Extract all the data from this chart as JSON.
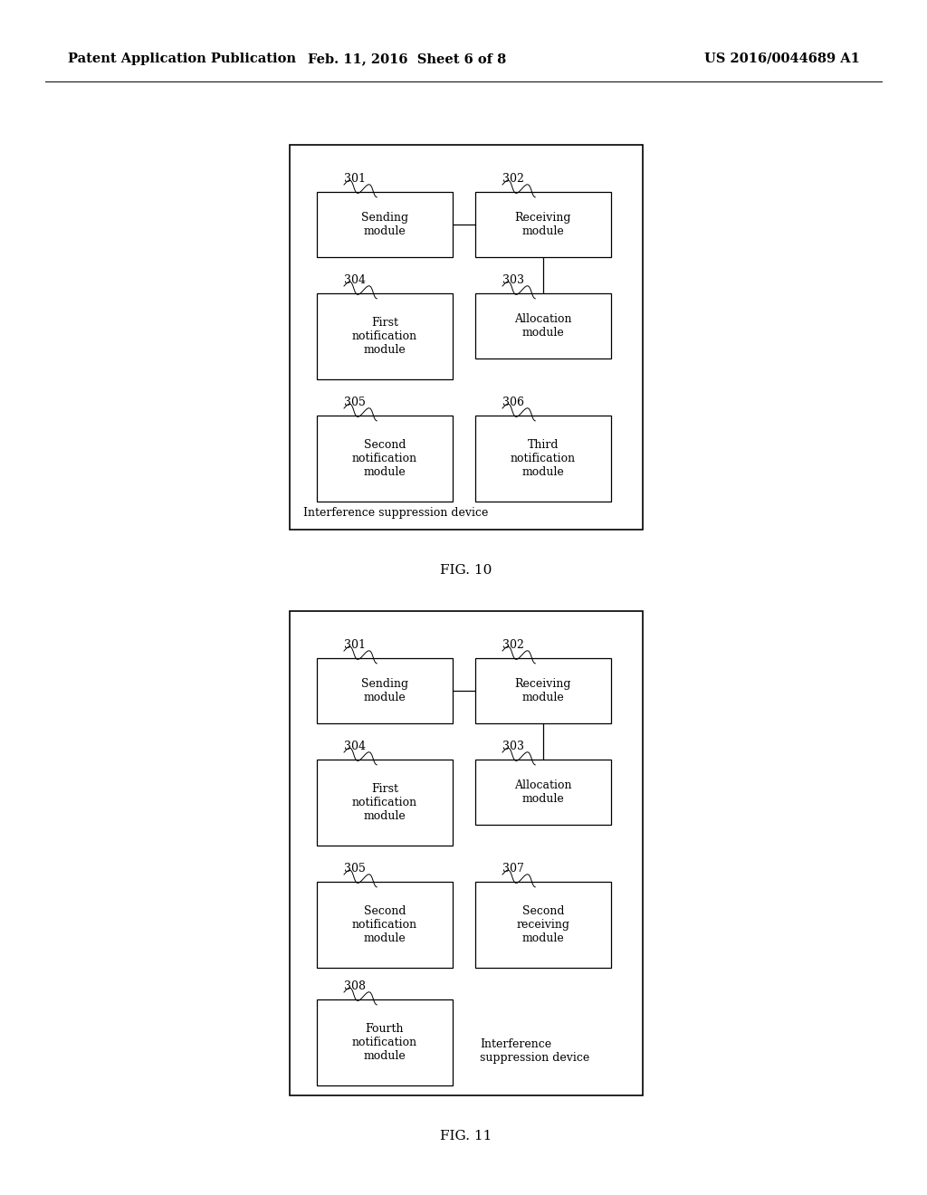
{
  "bg_color": "#ffffff",
  "header_left": "Patent Application Publication",
  "header_center": "Feb. 11, 2016  Sheet 6 of 8",
  "header_right": "US 2016/0044689 A1",
  "fig10_title": "FIG. 10",
  "fig11_title": "FIG. 11",
  "font_size_header": 10.5,
  "font_size_label": 9.0,
  "font_size_box": 9.0,
  "font_size_id": 9.0,
  "font_size_fig": 11.0
}
